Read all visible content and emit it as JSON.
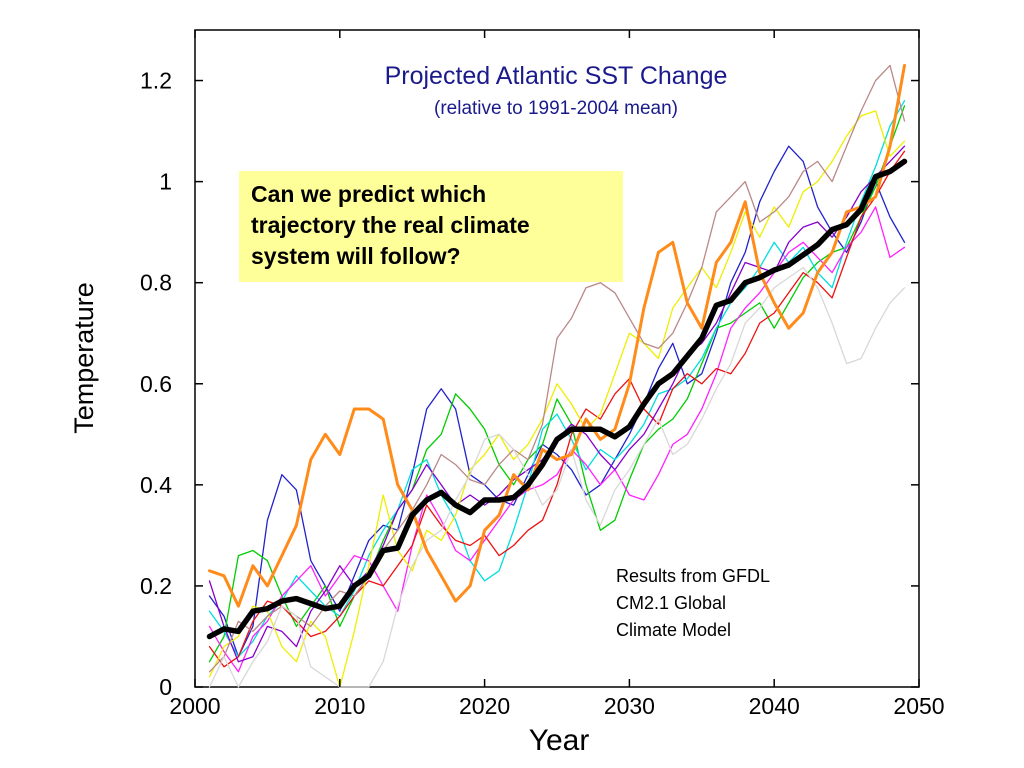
{
  "chart_data": {
    "type": "line",
    "title": "Projected Atlantic SST Change",
    "subtitle": "(relative to 1991-2004 mean)",
    "xlabel": "Year",
    "ylabel": "Temperature",
    "xlim": [
      2000,
      2050
    ],
    "ylim": [
      0,
      1.3
    ],
    "xticks": [
      "2000",
      "2010",
      "2020",
      "2030",
      "2040",
      "2050"
    ],
    "yticks": [
      "0",
      "0.2",
      "0.4",
      "0.6",
      "0.8",
      "1",
      "1.2"
    ],
    "grid": false,
    "x": [
      2001,
      2002,
      2003,
      2004,
      2005,
      2006,
      2007,
      2008,
      2009,
      2010,
      2011,
      2012,
      2013,
      2014,
      2015,
      2016,
      2017,
      2018,
      2019,
      2020,
      2021,
      2022,
      2023,
      2024,
      2025,
      2026,
      2027,
      2028,
      2029,
      2030,
      2031,
      2032,
      2033,
      2034,
      2035,
      2036,
      2037,
      2038,
      2039,
      2040,
      2041,
      2042,
      2043,
      2044,
      2045,
      2046,
      2047,
      2048,
      2049
    ],
    "series": [
      {
        "color": "#000000",
        "emphasis": "ensemble-mean",
        "values": [
          0.1,
          0.115,
          0.11,
          0.15,
          0.155,
          0.17,
          0.175,
          0.165,
          0.155,
          0.16,
          0.2,
          0.22,
          0.27,
          0.275,
          0.34,
          0.37,
          0.385,
          0.36,
          0.345,
          0.37,
          0.37,
          0.375,
          0.4,
          0.44,
          0.49,
          0.51,
          0.51,
          0.51,
          0.495,
          0.515,
          0.56,
          0.6,
          0.62,
          0.655,
          0.69,
          0.755,
          0.765,
          0.8,
          0.81,
          0.825,
          0.835,
          0.855,
          0.875,
          0.905,
          0.915,
          0.945,
          1.01,
          1.02,
          1.04
        ]
      },
      {
        "color": "#ff8c1a",
        "emphasis": "highlight",
        "values": [
          0.23,
          0.22,
          0.16,
          0.24,
          0.2,
          0.26,
          0.32,
          0.45,
          0.5,
          0.46,
          0.55,
          0.55,
          0.53,
          0.4,
          0.35,
          0.27,
          0.22,
          0.17,
          0.2,
          0.31,
          0.34,
          0.42,
          0.39,
          0.47,
          0.45,
          0.46,
          0.53,
          0.49,
          0.51,
          0.6,
          0.75,
          0.86,
          0.88,
          0.76,
          0.71,
          0.84,
          0.88,
          0.96,
          0.82,
          0.76,
          0.71,
          0.74,
          0.82,
          0.86,
          0.94,
          0.95,
          0.97,
          1.07,
          1.23
        ]
      },
      {
        "color": "#2222cc",
        "values": [
          0.18,
          0.14,
          0.06,
          0.12,
          0.33,
          0.42,
          0.39,
          0.25,
          0.2,
          0.15,
          0.22,
          0.29,
          0.32,
          0.31,
          0.42,
          0.55,
          0.59,
          0.55,
          0.42,
          0.4,
          0.37,
          0.36,
          0.42,
          0.48,
          0.46,
          0.43,
          0.38,
          0.4,
          0.45,
          0.5,
          0.56,
          0.63,
          0.68,
          0.6,
          0.62,
          0.7,
          0.8,
          0.86,
          0.96,
          1.02,
          1.07,
          1.04,
          0.95,
          0.9,
          0.86,
          0.92,
          1.0,
          0.93,
          0.88
        ]
      },
      {
        "color": "#00cc00",
        "values": [
          0.05,
          0.1,
          0.26,
          0.27,
          0.25,
          0.18,
          0.12,
          0.16,
          0.2,
          0.12,
          0.18,
          0.22,
          0.29,
          0.35,
          0.39,
          0.47,
          0.5,
          0.58,
          0.55,
          0.51,
          0.44,
          0.4,
          0.45,
          0.48,
          0.57,
          0.52,
          0.4,
          0.31,
          0.33,
          0.41,
          0.48,
          0.51,
          0.53,
          0.57,
          0.64,
          0.71,
          0.72,
          0.74,
          0.76,
          0.71,
          0.76,
          0.81,
          0.84,
          0.86,
          0.87,
          0.93,
          0.99,
          1.07,
          1.15
        ]
      },
      {
        "color": "#00dddd",
        "values": [
          0.15,
          0.11,
          0.06,
          0.09,
          0.14,
          0.17,
          0.22,
          0.19,
          0.16,
          0.14,
          0.19,
          0.26,
          0.31,
          0.35,
          0.43,
          0.45,
          0.38,
          0.33,
          0.25,
          0.21,
          0.23,
          0.31,
          0.4,
          0.51,
          0.54,
          0.49,
          0.43,
          0.47,
          0.45,
          0.48,
          0.52,
          0.58,
          0.59,
          0.61,
          0.65,
          0.71,
          0.76,
          0.79,
          0.83,
          0.88,
          0.84,
          0.87,
          0.82,
          0.79,
          0.88,
          0.96,
          1.03,
          1.11,
          1.16
        ]
      },
      {
        "color": "#ff22ff",
        "values": [
          0.12,
          0.07,
          0.03,
          0.1,
          0.13,
          0.18,
          0.21,
          0.24,
          0.18,
          0.22,
          0.26,
          0.25,
          0.2,
          0.15,
          0.28,
          0.38,
          0.33,
          0.27,
          0.25,
          0.29,
          0.33,
          0.37,
          0.39,
          0.4,
          0.42,
          0.47,
          0.44,
          0.4,
          0.43,
          0.38,
          0.37,
          0.42,
          0.48,
          0.5,
          0.55,
          0.62,
          0.71,
          0.75,
          0.78,
          0.82,
          0.86,
          0.88,
          0.85,
          0.82,
          0.87,
          0.9,
          0.95,
          0.85,
          0.87
        ]
      },
      {
        "color": "#ee1111",
        "values": [
          0.08,
          0.04,
          0.06,
          0.13,
          0.17,
          0.16,
          0.13,
          0.1,
          0.11,
          0.14,
          0.18,
          0.21,
          0.2,
          0.24,
          0.28,
          0.36,
          0.32,
          0.29,
          0.28,
          0.3,
          0.26,
          0.28,
          0.31,
          0.33,
          0.4,
          0.5,
          0.55,
          0.53,
          0.58,
          0.61,
          0.55,
          0.52,
          0.59,
          0.62,
          0.6,
          0.63,
          0.62,
          0.66,
          0.72,
          0.74,
          0.78,
          0.82,
          0.8,
          0.77,
          0.85,
          0.93,
          0.97,
          1.02,
          1.06
        ]
      },
      {
        "color": "#8800cc",
        "values": [
          0.21,
          0.12,
          0.05,
          0.06,
          0.12,
          0.11,
          0.08,
          0.15,
          0.19,
          0.24,
          0.2,
          0.23,
          0.28,
          0.35,
          0.39,
          0.44,
          0.4,
          0.36,
          0.38,
          0.36,
          0.38,
          0.41,
          0.43,
          0.45,
          0.49,
          0.52,
          0.5,
          0.46,
          0.43,
          0.47,
          0.5,
          0.55,
          0.6,
          0.66,
          0.68,
          0.72,
          0.78,
          0.84,
          0.83,
          0.82,
          0.88,
          0.91,
          0.92,
          0.89,
          0.93,
          0.98,
          1.01,
          1.04,
          1.07
        ]
      },
      {
        "color": "#eeee00",
        "values": [
          0.02,
          0.08,
          0.1,
          0.16,
          0.15,
          0.08,
          0.05,
          0.13,
          0.1,
          0.0,
          0.11,
          0.24,
          0.38,
          0.27,
          0.23,
          0.31,
          0.29,
          0.34,
          0.43,
          0.46,
          0.5,
          0.45,
          0.48,
          0.53,
          0.6,
          0.56,
          0.51,
          0.54,
          0.62,
          0.7,
          0.68,
          0.65,
          0.75,
          0.79,
          0.83,
          0.79,
          0.86,
          0.94,
          0.89,
          0.95,
          0.91,
          0.98,
          1.0,
          1.04,
          1.09,
          1.13,
          1.14,
          1.05,
          1.08
        ]
      },
      {
        "color": "#bb8888",
        "values": [
          0.03,
          0.06,
          0.13,
          0.11,
          0.14,
          0.16,
          0.14,
          0.12,
          0.16,
          0.19,
          0.18,
          0.22,
          0.27,
          0.31,
          0.35,
          0.4,
          0.46,
          0.44,
          0.41,
          0.4,
          0.44,
          0.47,
          0.45,
          0.52,
          0.69,
          0.73,
          0.79,
          0.8,
          0.78,
          0.73,
          0.68,
          0.67,
          0.7,
          0.76,
          0.83,
          0.94,
          0.97,
          1.0,
          0.92,
          0.94,
          0.97,
          1.02,
          1.04,
          1.0,
          1.07,
          1.14,
          1.2,
          1.23,
          1.12
        ]
      },
      {
        "color": "#d8d8d8",
        "values": [
          0.0,
          0.06,
          0.0,
          0.05,
          0.09,
          0.16,
          0.14,
          0.04,
          0.02,
          0.0,
          0.0,
          0.0,
          0.05,
          0.16,
          0.24,
          0.29,
          0.31,
          0.37,
          0.42,
          0.49,
          0.5,
          0.47,
          0.42,
          0.36,
          0.39,
          0.47,
          0.37,
          0.32,
          0.39,
          0.43,
          0.48,
          0.53,
          0.46,
          0.48,
          0.53,
          0.59,
          0.64,
          0.72,
          0.75,
          0.79,
          0.81,
          0.83,
          0.79,
          0.72,
          0.64,
          0.65,
          0.71,
          0.76,
          0.79
        ]
      }
    ],
    "annotations": [
      "Can we predict which trajectory the real climate system will follow?",
      "Results from GFDL CM2.1 Global Climate Model"
    ]
  },
  "callout": {
    "line1": "Can we predict which",
    "line2": "trajectory the real climate",
    "line3": "system will follow?"
  },
  "note": {
    "line1": "Results from GFDL",
    "line2": "CM2.1 Global",
    "line3": "Climate Model"
  }
}
